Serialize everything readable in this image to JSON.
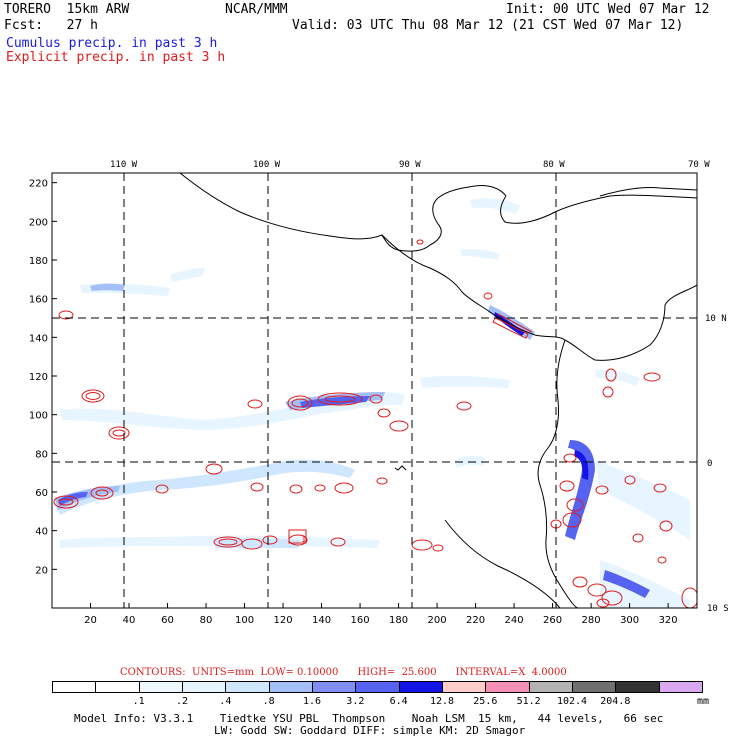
{
  "header": {
    "model": "TORERO  15km ARW",
    "org": "NCAR/MMM",
    "init": "Init: 00 UTC Wed 07 Mar 12",
    "fcst": "Fcst:   27 h",
    "valid": "Valid: 03 UTC Thu 08 Mar 12 (21 CST Wed 07 Mar 12)",
    "field_blue": "Cumulus precip. in past 3 h",
    "field_red": "Explicit precip. in past 3 h"
  },
  "map": {
    "lon_labels": [
      "110 W",
      "100 W",
      "90 W",
      "80 W",
      "70 W"
    ],
    "lat_labels": [
      "10 N",
      "0",
      "10 S"
    ],
    "x_ticks": [
      "20",
      "40",
      "60",
      "80",
      "100",
      "120",
      "140",
      "160",
      "180",
      "200",
      "220",
      "240",
      "260",
      "280",
      "300",
      "320"
    ],
    "y_ticks": [
      "20",
      "40",
      "60",
      "80",
      "100",
      "120",
      "140",
      "160",
      "180",
      "200",
      "220"
    ],
    "box_label": "1"
  },
  "contours_line": "CONTOURS:  UNITS=mm  LOW= 0.10000      HIGH=  25.600      INTERVAL=X  4.0000",
  "legend": {
    "colors": [
      "#ffffff",
      "#ffffff",
      "#f0f8ff",
      "#e6f5ff",
      "#cfe6ff",
      "#a3bff6",
      "#7f8ef2",
      "#5563f0",
      "#1414e6",
      "#ffcccc",
      "#f68fb5",
      "#b3b3b3",
      "#707070",
      "#333333",
      "#d8a8f0"
    ],
    "labels": [
      ".1",
      ".2",
      ".4",
      ".8",
      "1.6",
      "3.2",
      "6.4",
      "12.8",
      "25.6",
      "51.2",
      "102.4",
      "204.8"
    ],
    "units": "mm"
  },
  "footer": {
    "line1": "Model Info: V3.3.1    Tiedtke YSU PBL  Thompson    Noah LSM  15 km,   44 levels,   66 sec",
    "line2": "LW: Godd SW: Goddard DIFF: simple KM: 2D Smagor"
  }
}
